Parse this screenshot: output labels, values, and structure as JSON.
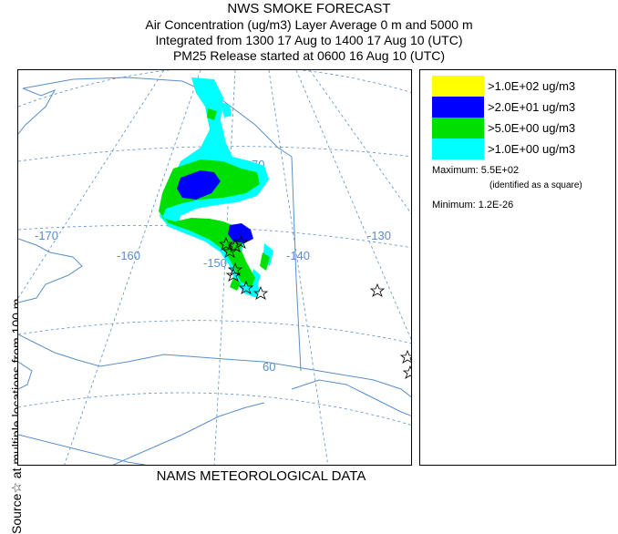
{
  "header": {
    "title": "NWS SMOKE FORECAST",
    "line1": "Air Concentration (ug/m3) Layer Average    0 m and  5000 m",
    "line2": "Integrated from 1300 17 Aug to 1400 17 Aug 10 (UTC)",
    "line3": "PM25 Release started at 0600 16 Aug 10 (UTC)"
  },
  "side_label": {
    "text": "Source☆ at multiple locations    from  100 m"
  },
  "footer": {
    "text": "NAMS METEOROLOGICAL DATA"
  },
  "legend": {
    "items": [
      {
        "label": ">1.0E+02 ug/m3",
        "color": "#ffff00"
      },
      {
        "label": ">2.0E+01 ug/m3",
        "color": "#0000ff"
      },
      {
        "label": ">5.0E+00 ug/m3",
        "color": "#00e000"
      },
      {
        "label": ">1.0E+00 ug/m3",
        "color": "#00ffff"
      }
    ],
    "maximum_label": "Maximum: 5.5E+02",
    "maximum_note": "(identified as a square)",
    "minimum_label": "Minimum: 1.2E-26"
  },
  "map": {
    "longitude_labels": [
      "-170",
      "-160",
      "-150",
      "-140",
      "-130"
    ],
    "latitude_labels": [
      "70",
      "60"
    ],
    "coast_color": "#5a8fc8",
    "grid_color": "#5a8fc8"
  }
}
